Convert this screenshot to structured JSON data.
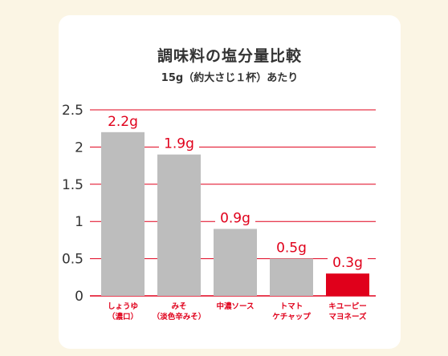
{
  "title": "調味料の塩分量比較",
  "subtitle": "15g（約大さじ１杯）あたり",
  "chart_data": {
    "type": "bar",
    "title": "調味料の塩分量比較",
    "subtitle": "15g（約大さじ１杯）あたり",
    "categories": [
      [
        "しょうゆ",
        "（濃口）"
      ],
      [
        "みそ",
        "（淡色辛みそ）"
      ],
      [
        "中濃ソース"
      ],
      [
        "トマト",
        "ケチャップ"
      ],
      [
        "キユーピー",
        "マヨネーズ"
      ]
    ],
    "values": [
      2.2,
      1.9,
      0.9,
      0.5,
      0.3
    ],
    "value_labels": [
      "2.2g",
      "1.9g",
      "0.9g",
      "0.5g",
      "0.3g"
    ],
    "yticks": [
      0,
      0.5,
      1,
      1.5,
      2,
      2.5
    ],
    "ytick_labels": [
      "0",
      "0.5",
      "1",
      "1.5",
      "2",
      "2.5"
    ],
    "ylim": [
      0,
      2.5
    ],
    "grid": true,
    "highlight_index": 4,
    "colors": {
      "bar": "#bdbdbd",
      "highlight": "#e0001b",
      "accent": "#e0001b",
      "gridline": "#e0001b",
      "axis_text": "#e0001b"
    }
  }
}
